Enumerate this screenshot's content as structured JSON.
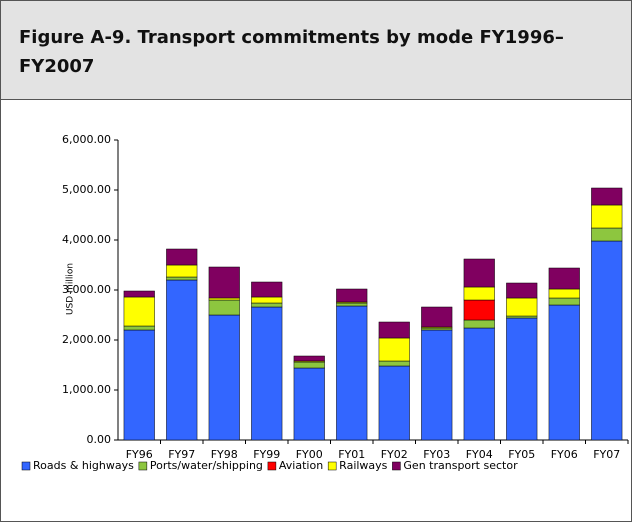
{
  "chart_data": {
    "type": "stacked_bar",
    "title": "Figure A-9. Transport commitments by mode FY1996–FY2007",
    "y_label": "USD million",
    "categories": [
      "FY96",
      "FY97",
      "FY98",
      "FY99",
      "FY00",
      "FY01",
      "FY02",
      "FY03",
      "FY04",
      "FY05",
      "FY06",
      "FY07"
    ],
    "series": [
      {
        "name": "Roads & highways",
        "color": "#3366ff",
        "values": [
          2200,
          3200,
          2500,
          2660,
          1440,
          2680,
          1480,
          2200,
          2240,
          2440,
          2700,
          3980
        ]
      },
      {
        "name": "Ports/water/shipping",
        "color": "#8dc63f",
        "values": [
          80,
          60,
          300,
          80,
          120,
          60,
          100,
          40,
          160,
          40,
          140,
          260
        ]
      },
      {
        "name": "Aviation",
        "color": "#ff0000",
        "values": [
          0,
          0,
          0,
          0,
          0,
          0,
          0,
          0,
          400,
          0,
          0,
          0
        ]
      },
      {
        "name": "Railways",
        "color": "#ffff00",
        "values": [
          580,
          240,
          40,
          120,
          20,
          20,
          460,
          20,
          260,
          360,
          180,
          460
        ]
      },
      {
        "name": "Gen transport sector",
        "color": "#800060",
        "values": [
          120,
          320,
          620,
          300,
          100,
          260,
          320,
          400,
          560,
          300,
          420,
          340
        ]
      }
    ],
    "ylim": [
      0,
      6000
    ],
    "yticks": [
      {
        "value": 0,
        "label": "0.00"
      },
      {
        "value": 1000,
        "label": "1,000.00"
      },
      {
        "value": 2000,
        "label": "2,000.00"
      },
      {
        "value": 3000,
        "label": "3,000.00"
      },
      {
        "value": 4000,
        "label": "4,000.00"
      },
      {
        "value": 5000,
        "label": "5,000.00"
      },
      {
        "value": 6000,
        "label": "6,000.00"
      }
    ],
    "legend": "bottom"
  }
}
